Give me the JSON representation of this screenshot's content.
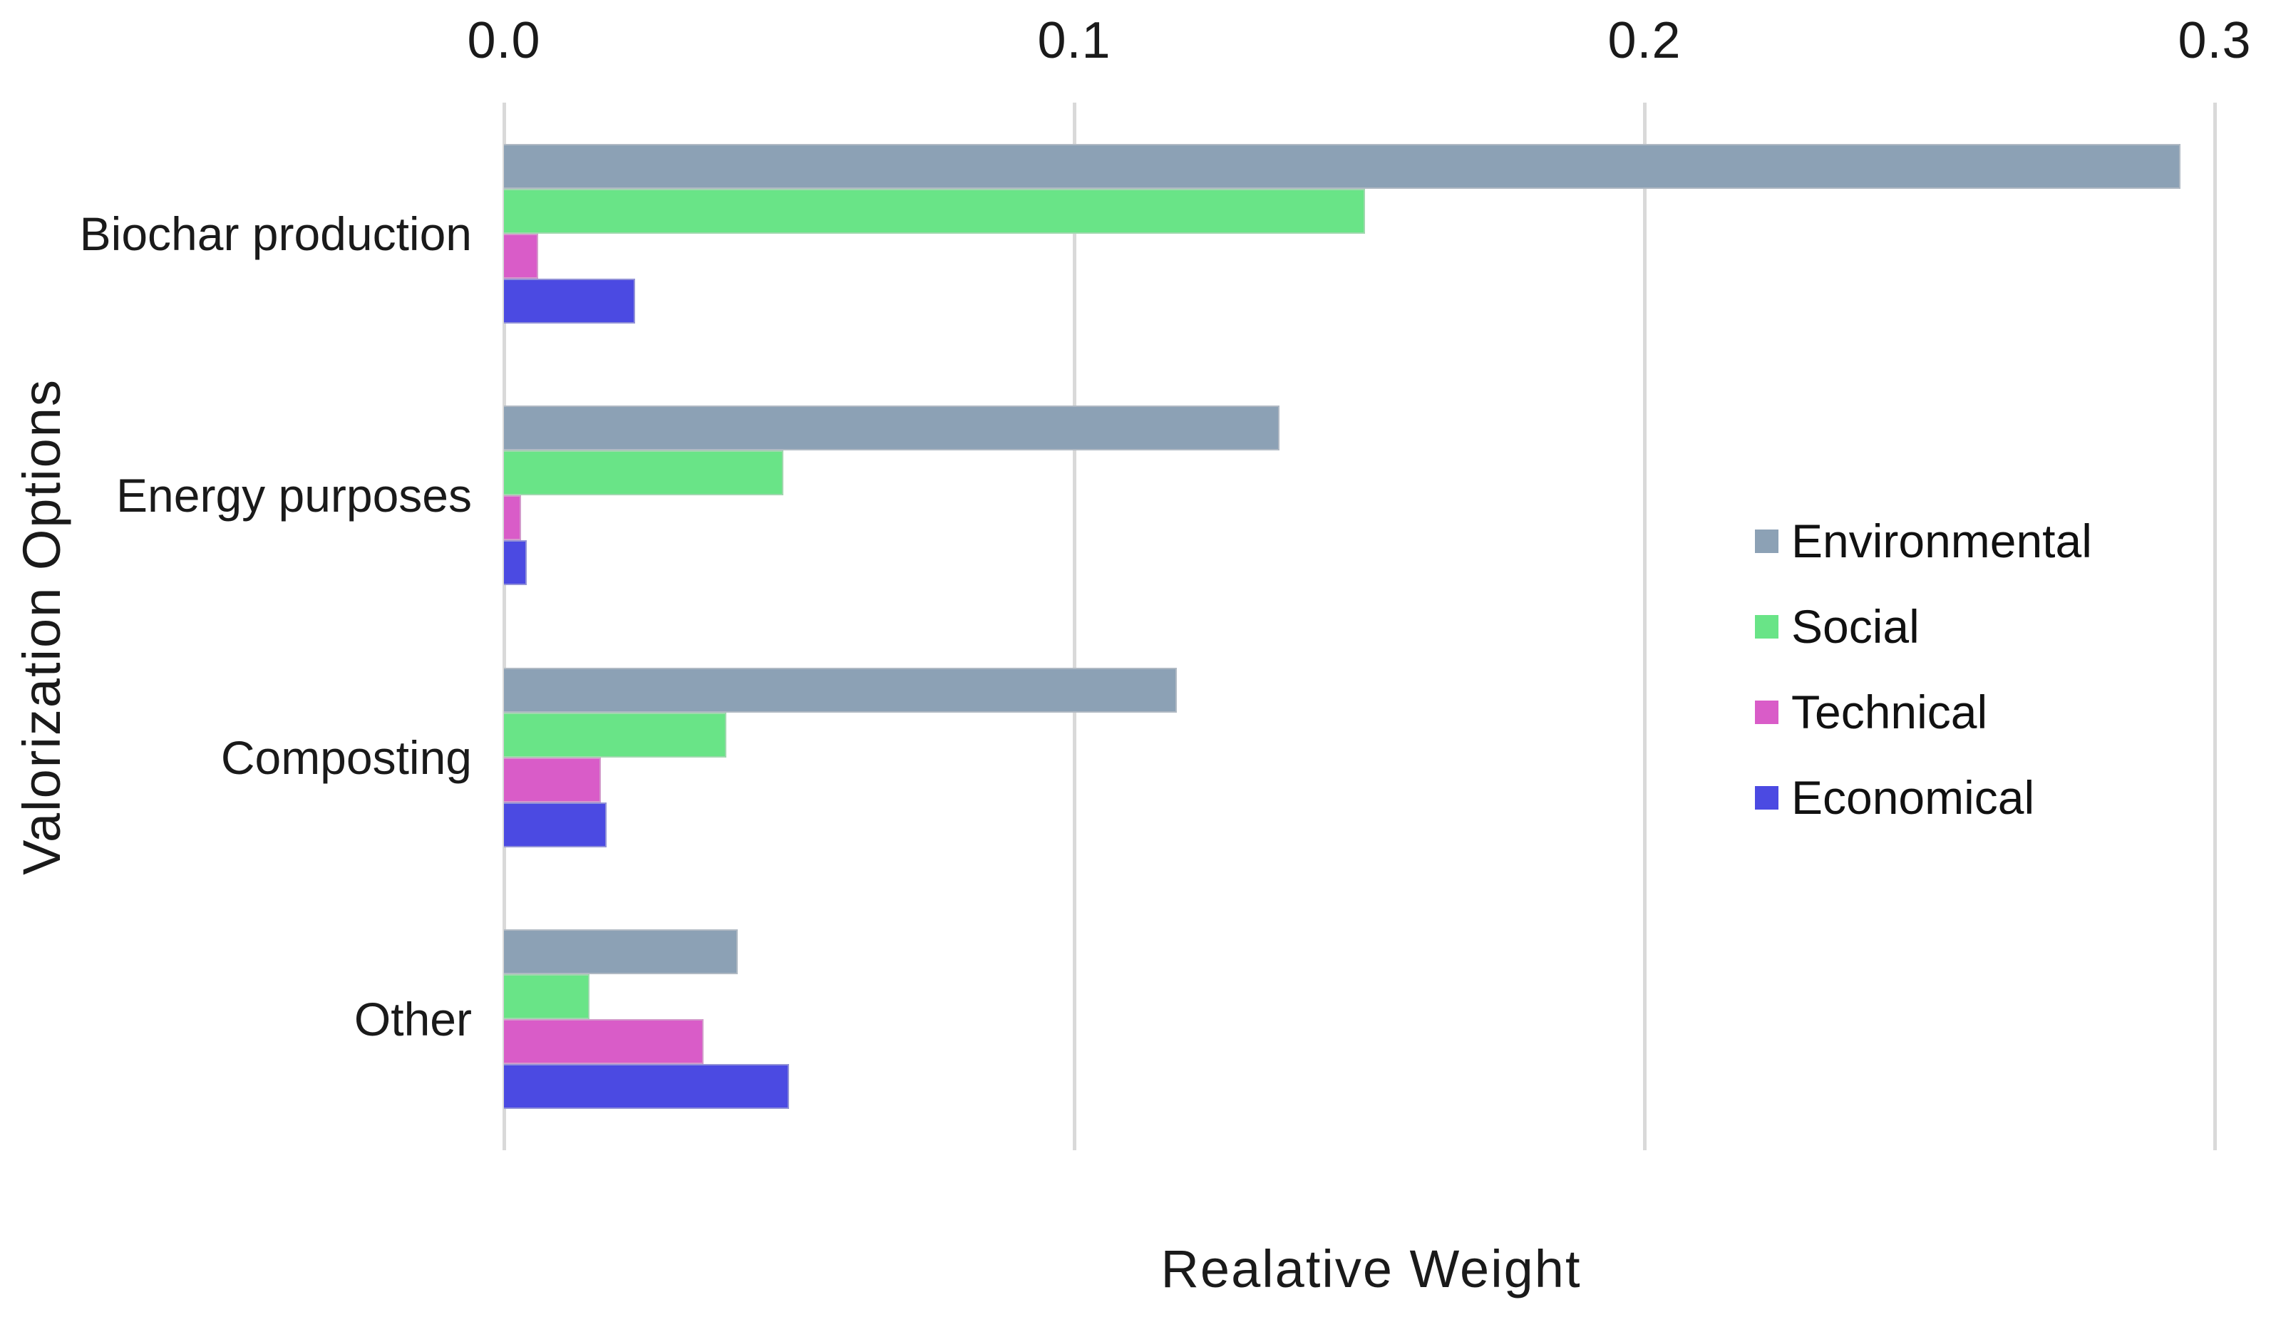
{
  "chart_data": {
    "type": "bar",
    "orientation": "horizontal",
    "xlabel": "Realative Weight",
    "ylabel": "Valorization Options",
    "categories": [
      "Biochar production",
      "Energy purposes",
      "Composting",
      "Other"
    ],
    "series": [
      {
        "name": "Environmental",
        "color": "#8CA1B5",
        "values": [
          0.294,
          0.136,
          0.118,
          0.041
        ]
      },
      {
        "name": "Social",
        "color": "#69E487",
        "values": [
          0.151,
          0.049,
          0.039,
          0.015
        ]
      },
      {
        "name": "Technical",
        "color": "#D95CC8",
        "values": [
          0.006,
          0.003,
          0.017,
          0.035
        ]
      },
      {
        "name": "Economical",
        "color": "#4B4AE2",
        "values": [
          0.023,
          0.004,
          0.018,
          0.05
        ]
      }
    ],
    "x_ticks": [
      "0.0",
      "0.1",
      "0.2",
      "0.3"
    ],
    "x_tick_values": [
      0.0,
      0.1,
      0.2,
      0.3
    ],
    "xlim": [
      0,
      0.3
    ],
    "grid": "vertical-only",
    "gridline_color": "#d9d9d9",
    "legend_position": "right-middle",
    "background": "#ffffff",
    "text_color": "#1a1a1a"
  }
}
